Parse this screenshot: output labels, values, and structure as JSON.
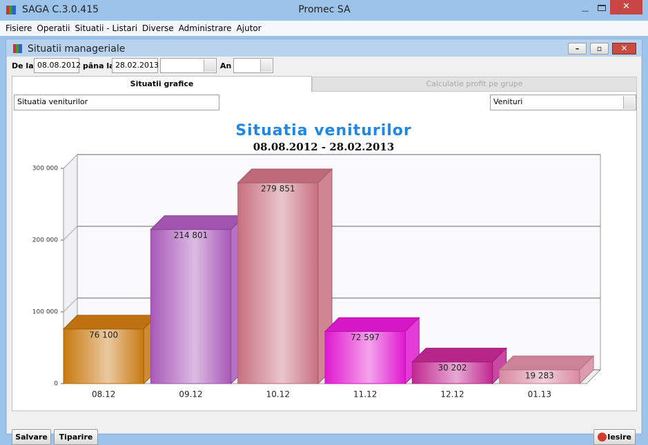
{
  "window": {
    "app_title": "SAGA C.3.0.415",
    "company": "Promec SA"
  },
  "menu": [
    "Fisiere",
    "Operatii",
    "Situatii - Listari",
    "Diverse",
    "Administrare",
    "Ajutor"
  ],
  "subwindow": {
    "title": "Situatii manageriale"
  },
  "filters": {
    "from_label": "De la",
    "from": "08.08.2012",
    "to_label": "pâna la",
    "to": "28.02.2013",
    "year_label": "An"
  },
  "tabs": [
    "Situatii grafice",
    "Calculatie profit pe grupe"
  ],
  "report_name": "Situatia veniturilor",
  "report_type": "Venituri",
  "chart_data": {
    "type": "bar3d",
    "title": "Situatia veniturilor",
    "subtitle": "08.08.2012 - 28.02.2013",
    "categories": [
      "08.12",
      "09.12",
      "10.12",
      "11.12",
      "12.12",
      "01.13"
    ],
    "values": [
      76100,
      214801,
      279851,
      72597,
      30202,
      19283
    ],
    "value_labels": [
      "76 100",
      "214 801",
      "279 851",
      "72 597",
      "30 202",
      "19 283"
    ],
    "colors": [
      "#c87810",
      "#a858b8",
      "#c87080",
      "#e018d0",
      "#c02890",
      "#d88aa2"
    ],
    "ylim": [
      0,
      300000
    ],
    "yticks": [
      0,
      {
        "value": 100000,
        "label": "100 000"
      },
      {
        "value": 200000,
        "label": "200 000"
      },
      {
        "value": 300000,
        "label": "300 000"
      }
    ],
    "grid": true
  },
  "buttons": {
    "save": "Salvare",
    "print": "Tiparire",
    "exit": "Iesire"
  }
}
